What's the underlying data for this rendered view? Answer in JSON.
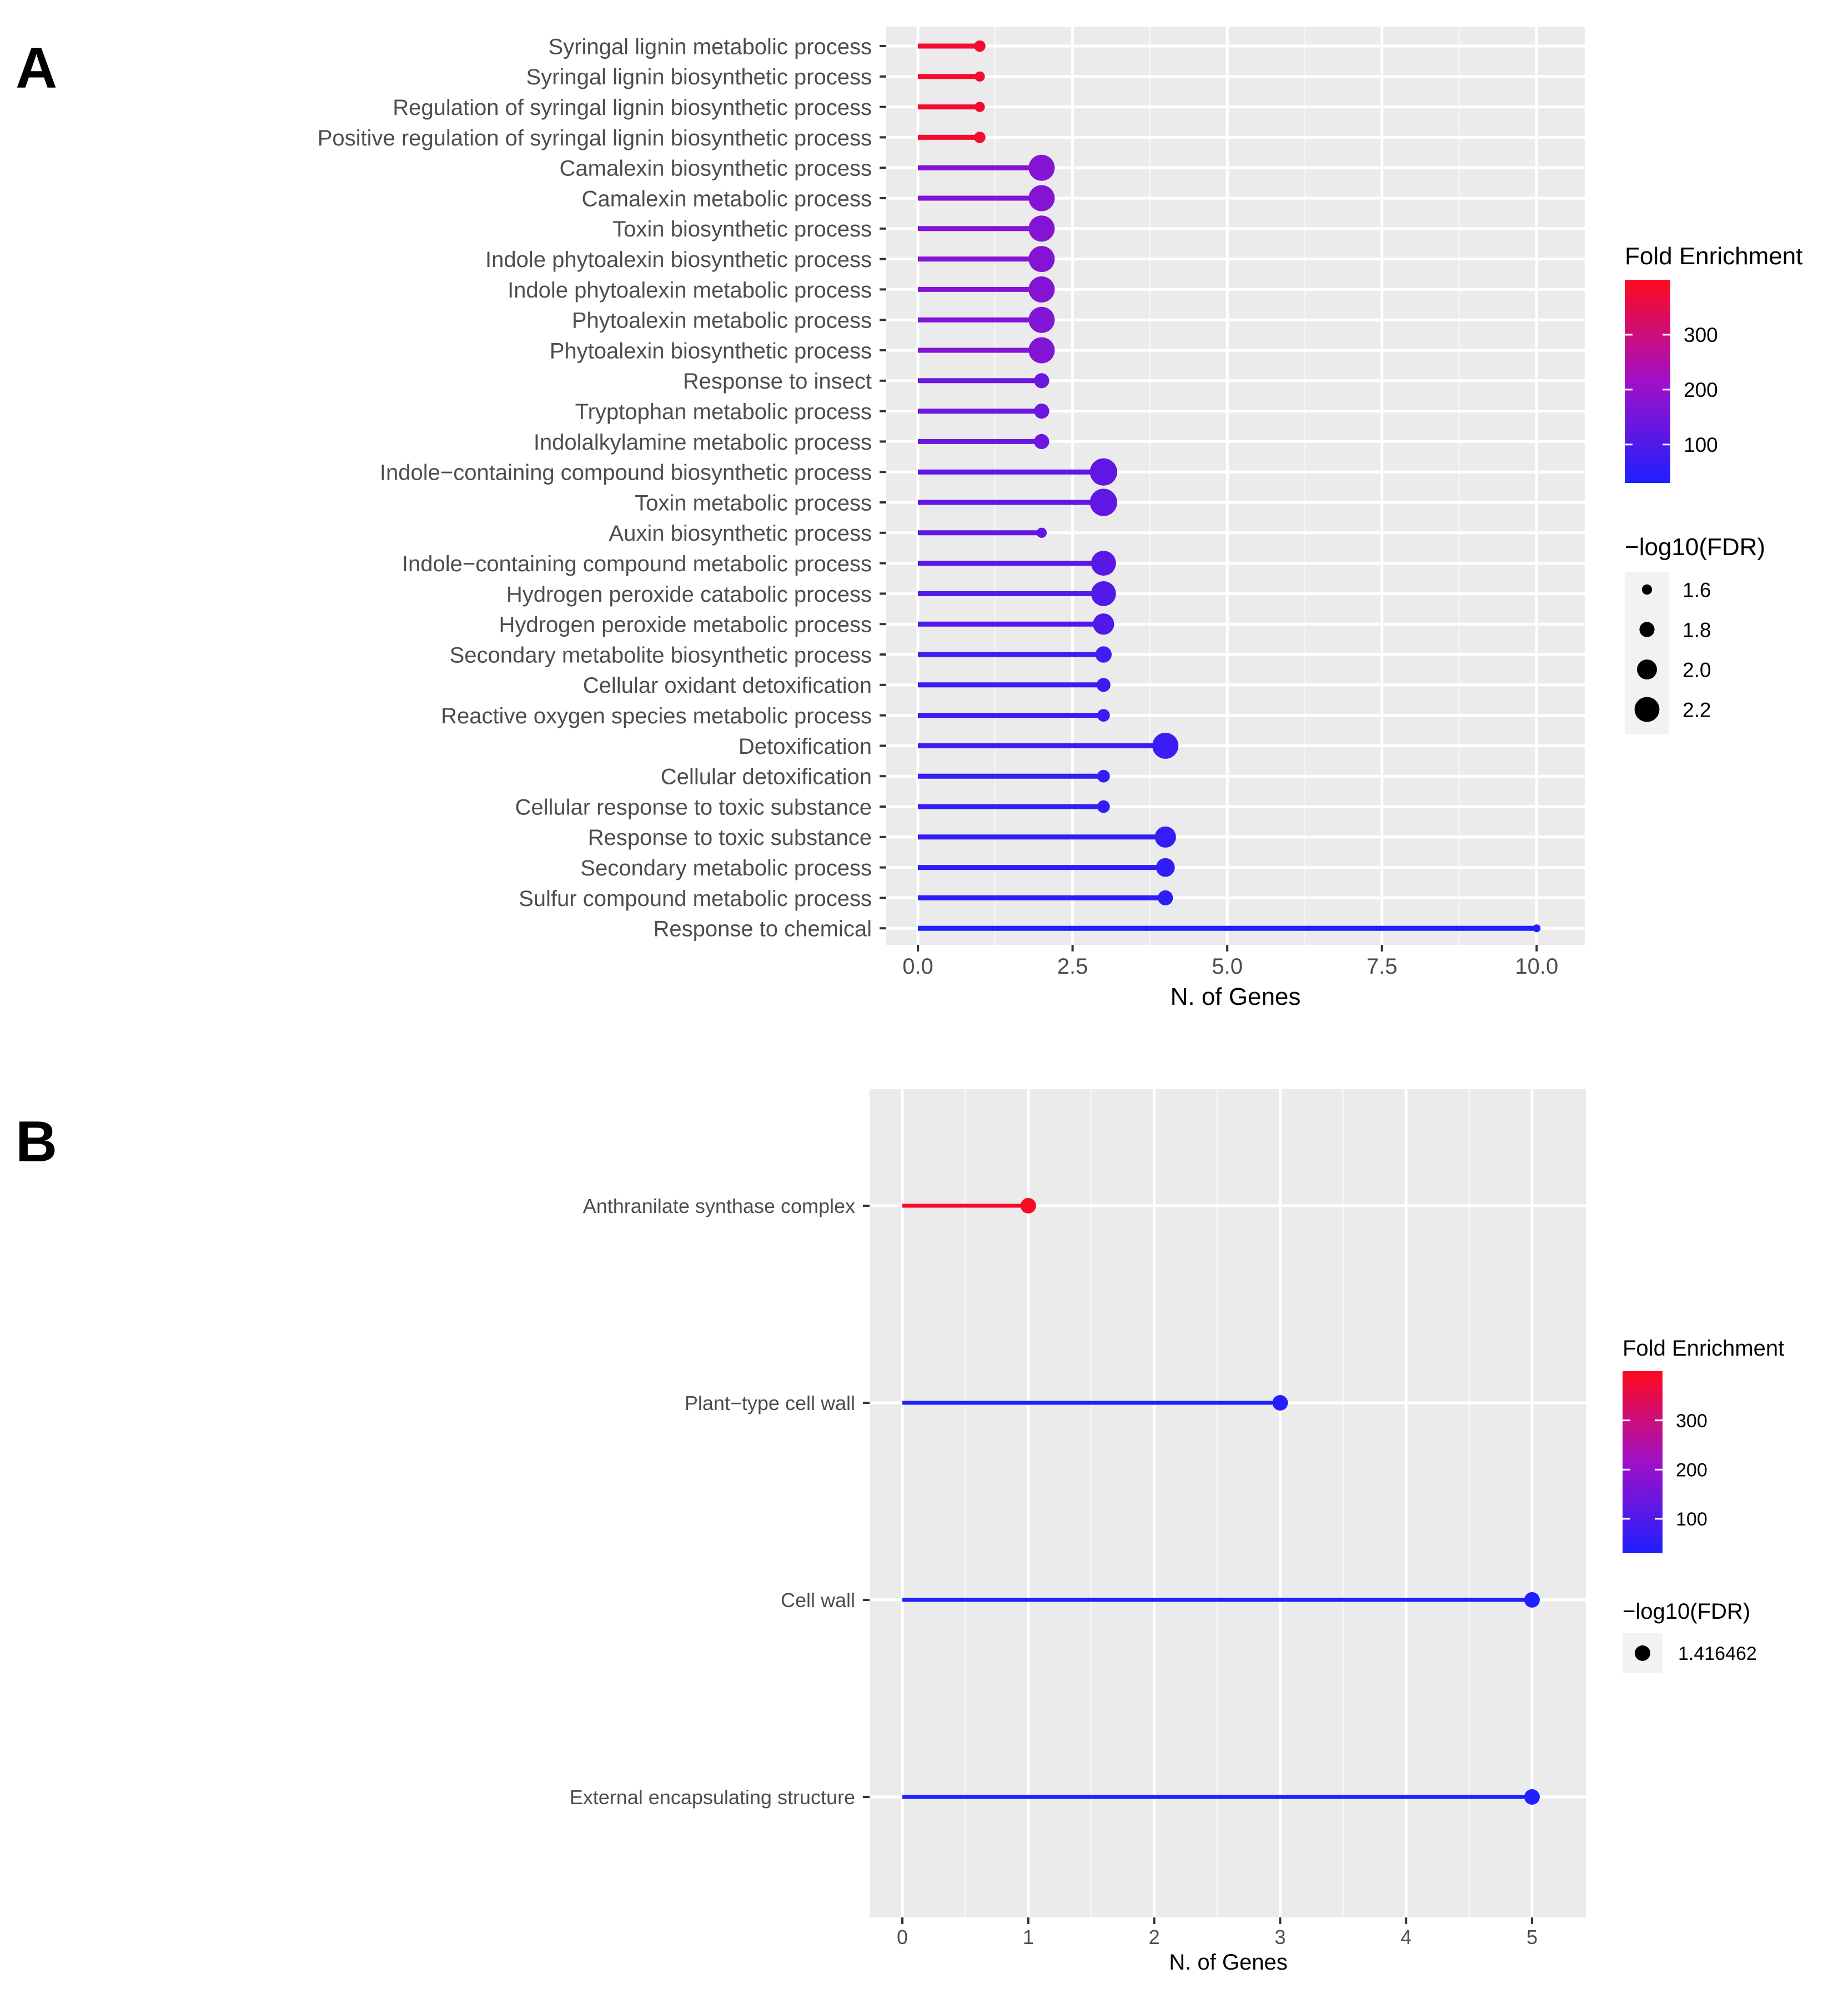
{
  "colors": {
    "panel_bg": "#EBEBEB",
    "grid": "#FFFFFF",
    "low": "#1F1FFF",
    "mid": "#A010C8",
    "high": "#FF0A1E",
    "text": "#4D4D4D"
  },
  "chart_data": [
    {
      "panel": "A",
      "type": "lollipop",
      "orientation": "horizontal",
      "xlabel": "N. of Genes",
      "ylabel": "",
      "xlim": [
        0,
        10.5
      ],
      "xticks": [
        "0.0",
        "2.5",
        "5.0",
        "7.5",
        "10.0"
      ],
      "xtick_values": [
        0,
        2.5,
        5,
        7.5,
        10
      ],
      "color_legend": {
        "title": "Fold Enrichment",
        "ticks": [
          "300",
          "200",
          "100"
        ],
        "tick_values": [
          300,
          200,
          100
        ],
        "range": [
          30,
          400
        ]
      },
      "size_legend": {
        "title": "−log10(FDR)",
        "entries": [
          "1.6",
          "1.8",
          "2.0",
          "2.2"
        ],
        "values": [
          1.6,
          1.8,
          2.0,
          2.2
        ]
      },
      "categories": [
        "Syringal lignin metabolic process",
        "Syringal lignin biosynthetic process",
        "Regulation of syringal lignin biosynthetic process",
        "Positive regulation of syringal lignin biosynthetic process",
        "Camalexin biosynthetic process",
        "Camalexin metabolic process",
        "Toxin biosynthetic process",
        "Indole phytoalexin biosynthetic process",
        "Indole phytoalexin metabolic process",
        "Phytoalexin metabolic process",
        "Phytoalexin biosynthetic process",
        "Response to insect",
        "Tryptophan metabolic process",
        "Indolalkylamine metabolic process",
        "Indole−containing compound biosynthetic process",
        "Toxin metabolic process",
        "Auxin biosynthetic process",
        "Indole−containing compound metabolic process",
        "Hydrogen peroxide catabolic process",
        "Hydrogen peroxide metabolic process",
        "Secondary metabolite biosynthetic process",
        "Cellular oxidant detoxification",
        "Reactive oxygen species metabolic process",
        "Detoxification",
        "Cellular detoxification",
        "Cellular response to toxic substance",
        "Response to toxic substance",
        "Secondary metabolic process",
        "Sulfur compound metabolic process",
        "Response to chemical"
      ],
      "n_genes": [
        1,
        1,
        1,
        1,
        2,
        2,
        2,
        2,
        2,
        2,
        2,
        2,
        2,
        2,
        3,
        3,
        2,
        3,
        3,
        3,
        3,
        3,
        3,
        4,
        3,
        3,
        4,
        4,
        4,
        10
      ],
      "fold_enrichment": [
        380,
        380,
        380,
        380,
        175,
        175,
        175,
        175,
        175,
        170,
        170,
        140,
        140,
        140,
        125,
        125,
        125,
        115,
        105,
        100,
        80,
        70,
        70,
        70,
        60,
        60,
        60,
        55,
        50,
        30
      ],
      "neg_log10_fdr": [
        1.65,
        1.6,
        1.6,
        1.65,
        2.25,
        2.25,
        2.25,
        2.25,
        2.25,
        2.25,
        2.25,
        1.8,
        1.8,
        1.8,
        2.3,
        2.3,
        1.6,
        2.2,
        2.2,
        2.05,
        1.85,
        1.75,
        1.7,
        2.25,
        1.7,
        1.7,
        2.05,
        1.95,
        1.8,
        1.5
      ]
    },
    {
      "panel": "B",
      "type": "lollipop",
      "orientation": "horizontal",
      "xlabel": "N. of Genes",
      "ylabel": "",
      "xlim": [
        0,
        5.3
      ],
      "xticks": [
        "0",
        "1",
        "2",
        "3",
        "4",
        "5"
      ],
      "xtick_values": [
        0,
        1,
        2,
        3,
        4,
        5
      ],
      "color_legend": {
        "title": "Fold Enrichment",
        "ticks": [
          "300",
          "200",
          "100"
        ],
        "tick_values": [
          300,
          200,
          100
        ],
        "range": [
          30,
          400
        ]
      },
      "size_legend": {
        "title": "−log10(FDR)",
        "entries": [
          "1.416462"
        ],
        "values": [
          1.416462
        ]
      },
      "categories": [
        "Anthranilate synthase complex",
        "Plant−type cell wall",
        "Cell wall",
        "External encapsulating structure"
      ],
      "n_genes": [
        1,
        3,
        5,
        5
      ],
      "fold_enrichment": [
        390,
        35,
        30,
        30
      ],
      "neg_log10_fdr": [
        1.416462,
        1.416462,
        1.416462,
        1.416462
      ]
    }
  ],
  "panel_labels": [
    "A",
    "B"
  ]
}
